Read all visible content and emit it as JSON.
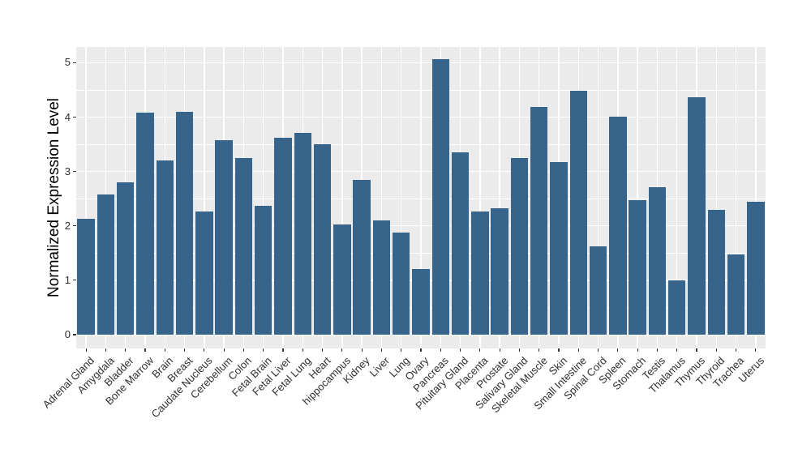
{
  "chart_data": {
    "type": "bar",
    "title": "",
    "xlabel": "",
    "ylabel": "Normalized Expression Level",
    "categories": [
      "Adrenal Gland",
      "Amygdala",
      "Bladder",
      "Bone Marrow",
      "Brain",
      "Breast",
      "Caudate Nucleus",
      "Cerebellum",
      "Colon",
      "Fetal Brain",
      "Fetal Liver",
      "Fetal Lung",
      "Heart",
      "hippocampus",
      "Kidney",
      "Liver",
      "Lung",
      "Ovary",
      "Pancreas",
      "Pituitary Gland",
      "Placenta",
      "Prostate",
      "Salivary Gland",
      "Skeletal Muscle",
      "Skin",
      "Small Intestine",
      "Spinal Cord",
      "Spleen",
      "Stomach",
      "Testis",
      "Thalamus",
      "Thymus",
      "Thyroid",
      "Trachea",
      "Uterus"
    ],
    "values": [
      2.13,
      2.58,
      2.8,
      4.08,
      3.21,
      4.1,
      2.27,
      3.58,
      3.25,
      2.37,
      3.62,
      3.71,
      3.5,
      2.03,
      2.85,
      2.1,
      1.88,
      1.2,
      5.06,
      3.36,
      2.27,
      2.32,
      3.25,
      4.18,
      3.17,
      4.48,
      1.62,
      4.01,
      2.48,
      2.71,
      1.0,
      4.37,
      2.29,
      1.47,
      2.45
    ],
    "yticks": [
      0,
      1,
      2,
      3,
      4,
      5
    ],
    "ylim": [
      -0.253,
      5.29
    ],
    "grid": "white major gridlines at integers, white minor gridlines at half-integers, vertical white gridlines at category centers, on gray panel",
    "legend": "none",
    "colors": {
      "bar": "#36648B",
      "panel_background": "#EBEBEB",
      "gridline": "#FFFFFF",
      "tick_mark": "#333333",
      "tick_label": "#303030",
      "axis_title": "#000000"
    }
  }
}
